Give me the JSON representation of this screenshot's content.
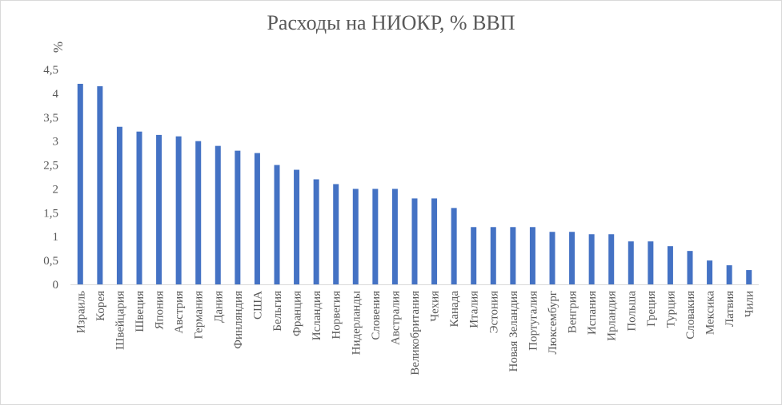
{
  "chart_data": {
    "type": "bar",
    "title": "Расходы на НИОКР, % ВВП",
    "ylabel": "%",
    "xlabel": "",
    "ylim": [
      0,
      4.5
    ],
    "yticks": [
      "0",
      "0,5",
      "1",
      "1,5",
      "2",
      "2,5",
      "3",
      "3,5",
      "4",
      "4,5"
    ],
    "grid": false,
    "bar_color": "#4472c4",
    "categories": [
      "Израиль",
      "Корея",
      "Швейцария",
      "Швеция",
      "Япония",
      "Австрия",
      "Германия",
      "Дания",
      "Финляндия",
      "США",
      "Бельгия",
      "Франция",
      "Исландия",
      "Норвегия",
      "Нидерланды",
      "Словения",
      "Австралия",
      "Великобритания",
      "Чехия",
      "Канада",
      "Италия",
      "Эстония",
      "Новая Зеландия",
      "Португалия",
      "Люксембург",
      "Венгрия",
      "Испания",
      "Ирландия",
      "Польша",
      "Греция",
      "Турция",
      "Словакия",
      "Мексика",
      "Латвия",
      "Чили"
    ],
    "values": [
      4.2,
      4.15,
      3.3,
      3.2,
      3.13,
      3.1,
      3.0,
      2.9,
      2.8,
      2.75,
      2.5,
      2.4,
      2.2,
      2.1,
      2.0,
      2.0,
      2.0,
      1.8,
      1.8,
      1.6,
      1.2,
      1.2,
      1.2,
      1.2,
      1.1,
      1.1,
      1.05,
      1.05,
      0.9,
      0.9,
      0.8,
      0.7,
      0.5,
      0.4,
      0.3
    ]
  }
}
